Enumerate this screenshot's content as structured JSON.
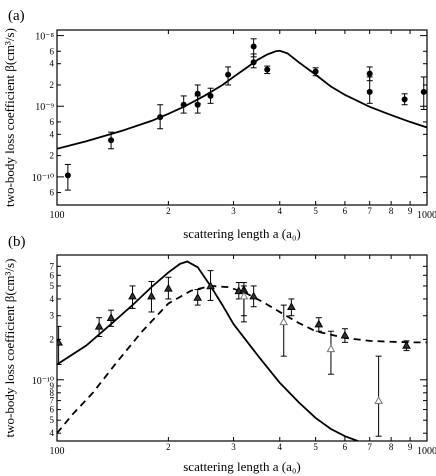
{
  "chart_data": [
    {
      "panel": "(a)",
      "type": "scatter",
      "xlabel": "scattering length a (a₀)",
      "ylabel": "two-body loss coefficient β(cm³/s)",
      "x_scale": "log",
      "y_scale": "log",
      "xlim": [
        100,
        1000
      ],
      "ylim": [
        4e-11,
        1.2e-08
      ],
      "x_major_ticks": [
        {
          "v": 100,
          "label": "100"
        },
        {
          "v": 1000,
          "label": "1000"
        }
      ],
      "x_minor_ticks": [
        {
          "v": 200,
          "label": "2"
        },
        {
          "v": 300,
          "label": "3"
        },
        {
          "v": 400,
          "label": "4"
        },
        {
          "v": 500,
          "label": "5"
        },
        {
          "v": 600,
          "label": "6"
        },
        {
          "v": 700,
          "label": "7"
        },
        {
          "v": 800,
          "label": "8"
        },
        {
          "v": 900,
          "label": "9"
        }
      ],
      "y_major_ticks": [
        {
          "v": 1e-10,
          "label": "10⁻¹⁰"
        },
        {
          "v": 1e-09,
          "label": "10⁻⁹"
        },
        {
          "v": 1e-08,
          "label": "10⁻⁸"
        }
      ],
      "y_minor_ticks": [
        {
          "v": 6e-11,
          "label": "6"
        },
        {
          "v": 2e-10,
          "label": "2"
        },
        {
          "v": 4e-10,
          "label": "4"
        },
        {
          "v": 6e-10,
          "label": "6"
        },
        {
          "v": 2e-09,
          "label": "2"
        },
        {
          "v": 4e-09,
          "label": "4"
        },
        {
          "v": 6e-09,
          "label": "6"
        }
      ],
      "points": [
        {
          "x": 107,
          "y": 1.05e-10,
          "lo": 6.5e-11,
          "hi": 1.5e-10
        },
        {
          "x": 140,
          "y": 3.3e-10,
          "lo": 2.5e-10,
          "hi": 4.3e-10
        },
        {
          "x": 190,
          "y": 7e-10,
          "lo": 4.8e-10,
          "hi": 1.05e-09
        },
        {
          "x": 220,
          "y": 1.05e-09,
          "lo": 8e-10,
          "hi": 1.4e-09
        },
        {
          "x": 240,
          "y": 1.05e-09,
          "lo": 8e-10,
          "hi": 1.4e-09
        },
        {
          "x": 240,
          "y": 1.5e-09,
          "lo": 1.1e-09,
          "hi": 2e-09
        },
        {
          "x": 260,
          "y": 1.4e-09,
          "lo": 1.1e-09,
          "hi": 1.8e-09
        },
        {
          "x": 290,
          "y": 2.8e-09,
          "lo": 2e-09,
          "hi": 3.6e-09
        },
        {
          "x": 340,
          "y": 4.2e-09,
          "lo": 3.5e-09,
          "hi": 5.5e-09
        },
        {
          "x": 340,
          "y": 7e-09,
          "lo": 5e-09,
          "hi": 9e-09
        },
        {
          "x": 370,
          "y": 3.3e-09,
          "lo": 2.9e-09,
          "hi": 3.7e-09
        },
        {
          "x": 500,
          "y": 3.1e-09,
          "lo": 2.7e-09,
          "hi": 3.5e-09
        },
        {
          "x": 700,
          "y": 2.9e-09,
          "lo": 2.3e-09,
          "hi": 3.6e-09
        },
        {
          "x": 700,
          "y": 1.6e-09,
          "lo": 1.1e-09,
          "hi": 2.6e-09
        },
        {
          "x": 870,
          "y": 1.25e-09,
          "lo": 1.05e-09,
          "hi": 1.5e-09
        },
        {
          "x": 980,
          "y": 1.6e-09,
          "lo": 9e-10,
          "hi": 2.6e-09
        }
      ],
      "curve": {
        "style": "solid",
        "x": [
          100,
          120,
          150,
          180,
          200,
          220,
          250,
          280,
          300,
          330,
          350,
          370,
          390,
          400,
          420,
          450,
          500,
          550,
          600,
          700,
          800,
          900,
          1000
        ],
        "y": [
          2.5e-10,
          3.2e-10,
          4.5e-10,
          6.2e-10,
          7.8e-10,
          9.8e-10,
          1.4e-09,
          2e-09,
          2.6e-09,
          3.7e-09,
          4.6e-09,
          5.4e-09,
          6e-09,
          6.1e-09,
          5.6e-09,
          4.2e-09,
          2.8e-09,
          1.9e-09,
          1.45e-09,
          9.8e-10,
          7.5e-10,
          6e-10,
          5e-10
        ]
      }
    },
    {
      "panel": "(b)",
      "type": "scatter",
      "xlabel": "scattering length a (a₀)",
      "ylabel": "two-body loss coefficient β(cm³/s)",
      "x_scale": "log",
      "y_scale": "log",
      "xlim": [
        100,
        1000
      ],
      "ylim": [
        3.5e-11,
        8.5e-10
      ],
      "x_major_ticks": [
        {
          "v": 100,
          "label": "100"
        },
        {
          "v": 1000,
          "label": "1000"
        }
      ],
      "x_minor_ticks": [
        {
          "v": 200,
          "label": "2"
        },
        {
          "v": 300,
          "label": "3"
        },
        {
          "v": 400,
          "label": "4"
        },
        {
          "v": 500,
          "label": "5"
        },
        {
          "v": 600,
          "label": "6"
        },
        {
          "v": 700,
          "label": "7"
        },
        {
          "v": 800,
          "label": "8"
        },
        {
          "v": 900,
          "label": "9"
        }
      ],
      "y_major_ticks": [
        {
          "v": 1e-10,
          "label": "10⁻¹⁰"
        }
      ],
      "y_minor_ticks": [
        {
          "v": 4e-11,
          "label": "4"
        },
        {
          "v": 5e-11,
          "label": "5"
        },
        {
          "v": 6e-11,
          "label": "6"
        },
        {
          "v": 7e-11,
          "label": "7"
        },
        {
          "v": 8e-11,
          "label": "8"
        },
        {
          "v": 9e-11,
          "label": "9"
        },
        {
          "v": 2e-10,
          "label": "2"
        },
        {
          "v": 3e-10,
          "label": "3"
        },
        {
          "v": 4e-10,
          "label": "4"
        },
        {
          "v": 5e-10,
          "label": "5"
        },
        {
          "v": 6e-10,
          "label": "6"
        },
        {
          "v": 7e-10,
          "label": "7"
        }
      ],
      "series": [
        {
          "marker": "filled-triangle",
          "points": [
            {
              "x": 101,
              "y": 1.9e-10,
              "lo": 1.3e-10,
              "hi": 2.5e-10
            },
            {
              "x": 130,
              "y": 2.5e-10,
              "lo": 2.1e-10,
              "hi": 2.9e-10
            },
            {
              "x": 140,
              "y": 2.9e-10,
              "lo": 2.5e-10,
              "hi": 3.3e-10
            },
            {
              "x": 160,
              "y": 4.2e-10,
              "lo": 3.4e-10,
              "hi": 5e-10
            },
            {
              "x": 180,
              "y": 4.2e-10,
              "lo": 3.2e-10,
              "hi": 5.4e-10
            },
            {
              "x": 200,
              "y": 4.8e-10,
              "lo": 4e-10,
              "hi": 5.8e-10
            },
            {
              "x": 240,
              "y": 4.1e-10,
              "lo": 3.6e-10,
              "hi": 4.7e-10
            },
            {
              "x": 260,
              "y": 5e-10,
              "lo": 3.9e-10,
              "hi": 6.5e-10
            },
            {
              "x": 310,
              "y": 4.6e-10,
              "lo": 4e-10,
              "hi": 5.3e-10
            },
            {
              "x": 320,
              "y": 4.7e-10,
              "lo": 2.7e-10,
              "hi": 5.3e-10
            },
            {
              "x": 340,
              "y": 4.2e-10,
              "lo": 3.5e-10,
              "hi": 5e-10
            },
            {
              "x": 430,
              "y": 3.5e-10,
              "lo": 3e-10,
              "hi": 4e-10
            },
            {
              "x": 510,
              "y": 2.6e-10,
              "lo": 2.3e-10,
              "hi": 2.9e-10
            },
            {
              "x": 600,
              "y": 2.15e-10,
              "lo": 1.9e-10,
              "hi": 2.4e-10
            },
            {
              "x": 880,
              "y": 1.8e-10,
              "lo": 1.65e-10,
              "hi": 1.95e-10
            }
          ]
        },
        {
          "marker": "open-triangle",
          "points": [
            {
              "x": 320,
              "y": 4.2e-10,
              "lo": 3e-10,
              "hi": 5e-10
            },
            {
              "x": 410,
              "y": 2.7e-10,
              "lo": 1.5e-10,
              "hi": 3.6e-10
            },
            {
              "x": 550,
              "y": 1.7e-10,
              "lo": 1.1e-10,
              "hi": 2.3e-10
            },
            {
              "x": 740,
              "y": 7e-11,
              "lo": 3.8e-11,
              "hi": 1.5e-10
            }
          ]
        }
      ],
      "curves": [
        {
          "style": "solid",
          "x": [
            100,
            120,
            140,
            160,
            180,
            200,
            215,
            225,
            240,
            260,
            280,
            300,
            350,
            400,
            450,
            500,
            550,
            600,
            650
          ],
          "y": [
            1.3e-10,
            1.8e-10,
            2.6e-10,
            3.6e-10,
            4.9e-10,
            6.3e-10,
            7.3e-10,
            7.6e-10,
            6.9e-10,
            5e-10,
            3.6e-10,
            2.6e-10,
            1.5e-10,
            9.5e-11,
            6.8e-11,
            5.2e-11,
            4.3e-11,
            3.8e-11,
            3.5e-11
          ]
        },
        {
          "style": "dashed",
          "x": [
            100,
            110,
            125,
            145,
            170,
            200,
            230,
            260,
            290,
            320,
            360,
            400,
            450,
            500,
            600,
            700,
            800,
            900,
            1000
          ],
          "y": [
            4e-11,
            5.5e-11,
            8e-11,
            1.35e-10,
            2.3e-10,
            3.7e-10,
            4.6e-10,
            5e-10,
            4.9e-10,
            4.5e-10,
            3.8e-10,
            3.2e-10,
            2.65e-10,
            2.3e-10,
            2.05e-10,
            1.95e-10,
            1.92e-10,
            1.9e-10,
            1.9e-10
          ]
        }
      ]
    }
  ]
}
